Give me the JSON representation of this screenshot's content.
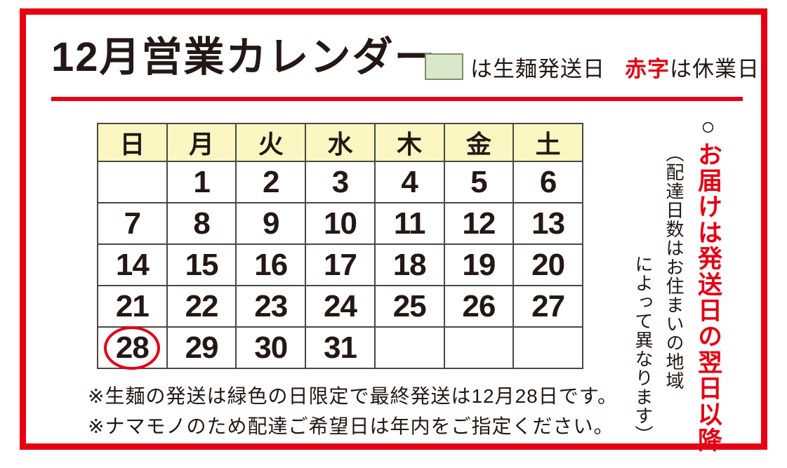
{
  "title": "12月営業カレンダー",
  "legend": {
    "green_label": "は生麺発送日",
    "red_term": "赤字",
    "red_label": "は休業日"
  },
  "calendar": {
    "weekdays": [
      {
        "label": "日",
        "color": "red"
      },
      {
        "label": "月",
        "color": "black"
      },
      {
        "label": "火",
        "color": "black"
      },
      {
        "label": "水",
        "color": "black"
      },
      {
        "label": "木",
        "color": "black"
      },
      {
        "label": "金",
        "color": "black"
      },
      {
        "label": "土",
        "color": "blue"
      }
    ],
    "weeks": [
      [
        {
          "day": "",
          "bg": "white",
          "color": "black"
        },
        {
          "day": "1",
          "bg": "green",
          "color": "black"
        },
        {
          "day": "2",
          "bg": "white",
          "color": "black"
        },
        {
          "day": "3",
          "bg": "white",
          "color": "black"
        },
        {
          "day": "4",
          "bg": "green",
          "color": "black"
        },
        {
          "day": "5",
          "bg": "white",
          "color": "black"
        },
        {
          "day": "6",
          "bg": "white",
          "color": "red"
        }
      ],
      [
        {
          "day": "7",
          "bg": "white",
          "color": "red"
        },
        {
          "day": "8",
          "bg": "green",
          "color": "black"
        },
        {
          "day": "9",
          "bg": "white",
          "color": "black"
        },
        {
          "day": "10",
          "bg": "white",
          "color": "black"
        },
        {
          "day": "11",
          "bg": "green",
          "color": "black"
        },
        {
          "day": "12",
          "bg": "white",
          "color": "black"
        },
        {
          "day": "13",
          "bg": "white",
          "color": "red"
        }
      ],
      [
        {
          "day": "14",
          "bg": "white",
          "color": "red"
        },
        {
          "day": "15",
          "bg": "green",
          "color": "black"
        },
        {
          "day": "16",
          "bg": "white",
          "color": "black"
        },
        {
          "day": "17",
          "bg": "white",
          "color": "black"
        },
        {
          "day": "18",
          "bg": "green",
          "color": "black"
        },
        {
          "day": "19",
          "bg": "white",
          "color": "black"
        },
        {
          "day": "20",
          "bg": "white",
          "color": "red"
        }
      ],
      [
        {
          "day": "21",
          "bg": "white",
          "color": "red"
        },
        {
          "day": "22",
          "bg": "green",
          "color": "black"
        },
        {
          "day": "23",
          "bg": "white",
          "color": "black"
        },
        {
          "day": "24",
          "bg": "white",
          "color": "black"
        },
        {
          "day": "25",
          "bg": "green",
          "color": "black"
        },
        {
          "day": "26",
          "bg": "green",
          "color": "black"
        },
        {
          "day": "27",
          "bg": "green",
          "color": "black"
        }
      ],
      [
        {
          "day": "28",
          "bg": "green",
          "color": "black",
          "circled": true
        },
        {
          "day": "29",
          "bg": "white",
          "color": "red"
        },
        {
          "day": "30",
          "bg": "white",
          "color": "red"
        },
        {
          "day": "31",
          "bg": "white",
          "color": "red"
        },
        {
          "day": "",
          "bg": "white",
          "color": "black"
        },
        {
          "day": "",
          "bg": "white",
          "color": "black"
        },
        {
          "day": "",
          "bg": "white",
          "color": "black"
        }
      ]
    ]
  },
  "side_note": {
    "circle_mark": "○",
    "red_text": "お届けは発送日の翌日以降",
    "paren_line1": "（配達日数はお住まいの地域",
    "paren_line2": "によって異なります）"
  },
  "notes": [
    "※生麺の発送は緑色の日限定で最終発送は12月28日です。",
    "※ナマモノのため配達ご希望日は年内をご指定ください。"
  ],
  "colors": {
    "red": "#e60012",
    "blue": "#1a72b4",
    "green_cell": "#d9e8cb",
    "header_yellow": "#fcf7c2",
    "grid": "#4a4844",
    "text_black": "#231815"
  }
}
